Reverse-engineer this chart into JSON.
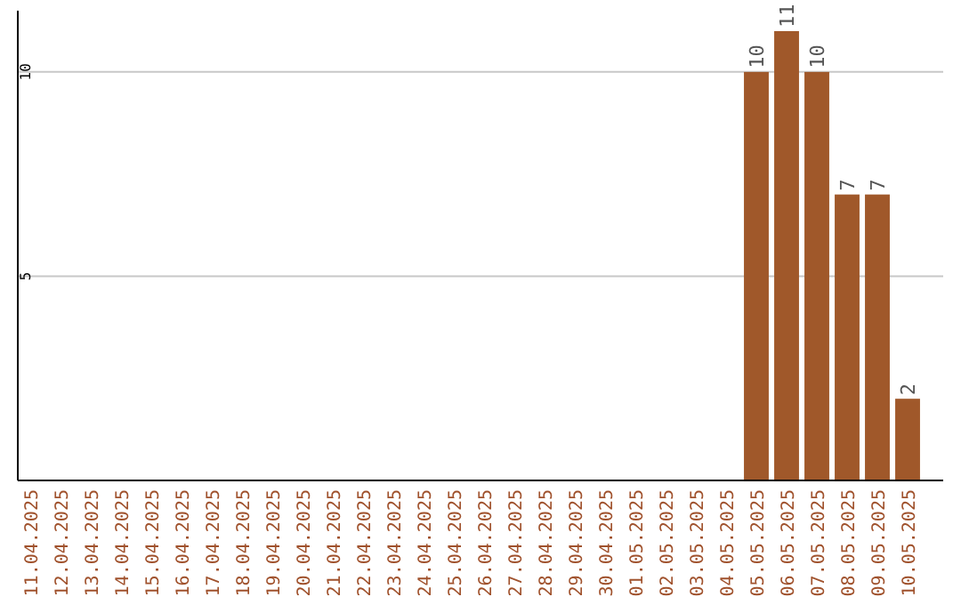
{
  "chart_data": {
    "type": "bar",
    "categories": [
      "11.04.2025",
      "12.04.2025",
      "13.04.2025",
      "14.04.2025",
      "15.04.2025",
      "16.04.2025",
      "17.04.2025",
      "18.04.2025",
      "19.04.2025",
      "20.04.2025",
      "21.04.2025",
      "22.04.2025",
      "23.04.2025",
      "24.04.2025",
      "25.04.2025",
      "26.04.2025",
      "27.04.2025",
      "28.04.2025",
      "29.04.2025",
      "30.04.2025",
      "01.05.2025",
      "02.05.2025",
      "03.05.2025",
      "04.05.2025",
      "05.05.2025",
      "06.05.2025",
      "07.05.2025",
      "08.05.2025",
      "09.05.2025",
      "10.05.2025"
    ],
    "values": [
      0,
      0,
      0,
      0,
      0,
      0,
      0,
      0,
      0,
      0,
      0,
      0,
      0,
      0,
      0,
      0,
      0,
      0,
      0,
      0,
      0,
      0,
      0,
      0,
      10,
      11,
      10,
      7,
      7,
      2
    ],
    "value_labels": [
      null,
      null,
      null,
      null,
      null,
      null,
      null,
      null,
      null,
      null,
      null,
      null,
      null,
      null,
      null,
      null,
      null,
      null,
      null,
      null,
      null,
      null,
      null,
      null,
      "10",
      "11",
      "10",
      "7",
      "7",
      "2"
    ],
    "color": "#a0582a",
    "ylim": [
      0,
      11.5
    ],
    "yticks": [
      5,
      10
    ],
    "grid": "y"
  }
}
